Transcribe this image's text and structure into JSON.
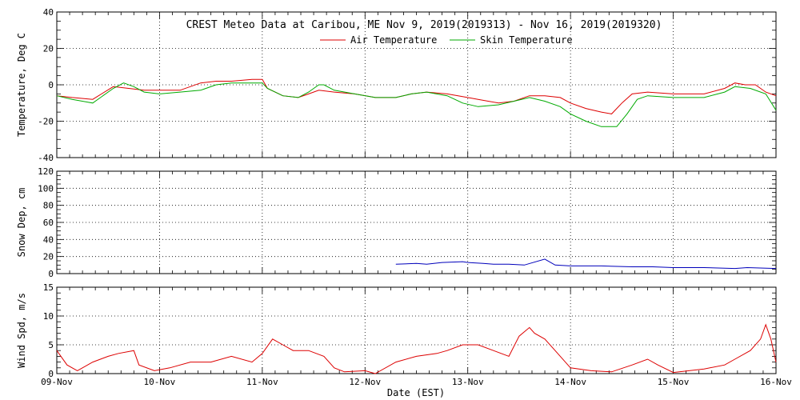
{
  "chart_data": {
    "type": "line",
    "title": "CREST Meteo Data at Caribou, ME   Nov  9, 2019(2019313) - Nov 16, 2019(2019320)",
    "xlabel": "Date (EST)",
    "x_ticks": [
      "09-Nov",
      "10-Nov",
      "11-Nov",
      "12-Nov",
      "13-Nov",
      "14-Nov",
      "15-Nov",
      "16-Nov"
    ],
    "xlim": [
      0,
      7
    ],
    "panels": [
      {
        "name": "temperature",
        "ylabel": "Temperature, Deg C",
        "ylim": [
          -40,
          40
        ],
        "yticks": [
          -40,
          -20,
          0,
          20,
          40
        ],
        "minor_step": 5,
        "legend": "top-center",
        "series": [
          {
            "name": "Air Temperature",
            "color": "#dd0000",
            "x": [
              0,
              0.15,
              0.35,
              0.55,
              0.7,
              0.85,
              1.0,
              1.2,
              1.4,
              1.55,
              1.7,
              1.9,
              2.0,
              2.05,
              2.2,
              2.35,
              2.45,
              2.55,
              2.7,
              2.9,
              3.1,
              3.3,
              3.45,
              3.6,
              3.8,
              4.0,
              4.1,
              4.3,
              4.45,
              4.6,
              4.75,
              4.9,
              5.0,
              5.15,
              5.3,
              5.4,
              5.5,
              5.6,
              5.75,
              6.0,
              6.3,
              6.5,
              6.6,
              6.7,
              6.8,
              6.9,
              7.0
            ],
            "y": [
              -6,
              -7,
              -8,
              -1,
              -2,
              -3,
              -3,
              -3,
              1,
              2,
              2,
              3,
              3,
              -2,
              -6,
              -7,
              -5,
              -3,
              -4,
              -5,
              -7,
              -7,
              -5,
              -4,
              -5,
              -7,
              -8,
              -10,
              -9,
              -6,
              -6,
              -7,
              -10,
              -13,
              -15,
              -16,
              -10,
              -5,
              -4,
              -5,
              -5,
              -2,
              1,
              0,
              0,
              -4,
              -6
            ]
          },
          {
            "name": "Skin Temperature",
            "color": "#00aa00",
            "x": [
              0,
              0.15,
              0.35,
              0.55,
              0.65,
              0.75,
              0.85,
              1.0,
              1.2,
              1.4,
              1.55,
              1.7,
              1.9,
              2.0,
              2.05,
              2.2,
              2.35,
              2.45,
              2.55,
              2.6,
              2.7,
              2.9,
              3.1,
              3.3,
              3.45,
              3.6,
              3.8,
              3.95,
              4.1,
              4.3,
              4.45,
              4.6,
              4.75,
              4.9,
              5.0,
              5.15,
              5.3,
              5.45,
              5.55,
              5.65,
              5.75,
              6.0,
              6.3,
              6.5,
              6.6,
              6.75,
              6.9,
              7.0
            ],
            "y": [
              -6,
              -8,
              -10,
              -2,
              1,
              -1,
              -4,
              -5,
              -4,
              -3,
              0,
              1,
              1,
              1,
              -2,
              -6,
              -7,
              -4,
              0,
              0,
              -3,
              -5,
              -7,
              -7,
              -5,
              -4,
              -6,
              -10,
              -12,
              -11,
              -9,
              -7,
              -9,
              -12,
              -16,
              -20,
              -23,
              -23,
              -16,
              -8,
              -6,
              -7,
              -7,
              -4,
              -1,
              -2,
              -5,
              -14
            ]
          }
        ]
      },
      {
        "name": "snow",
        "ylabel": "Snow Dep, cm",
        "ylim": [
          0,
          120
        ],
        "yticks": [
          0,
          20,
          40,
          60,
          80,
          100,
          120
        ],
        "minor_step": 5,
        "series": [
          {
            "name": "",
            "color": "#0000bb",
            "x": [
              3.3,
              3.5,
              3.6,
              3.75,
              3.95,
              4.0,
              4.15,
              4.25,
              4.3,
              4.4,
              4.55,
              4.75,
              4.85,
              5.0,
              5.3,
              5.6,
              5.8,
              6.0,
              6.3,
              6.6,
              6.72,
              7.0
            ],
            "y": [
              11,
              12,
              11,
              13,
              14,
              13,
              12,
              11,
              11,
              11,
              10,
              17,
              10,
              9,
              9,
              8,
              8,
              7,
              7,
              6,
              7,
              6
            ]
          }
        ]
      },
      {
        "name": "wind",
        "ylabel": "Wind Spd, m/s",
        "ylim": [
          0,
          15
        ],
        "yticks": [
          0,
          5,
          10,
          15
        ],
        "minor_step": 1,
        "series": [
          {
            "name": "",
            "color": "#dd0000",
            "x": [
              0,
              0.1,
              0.2,
              0.35,
              0.5,
              0.6,
              0.75,
              0.8,
              0.95,
              1.1,
              1.3,
              1.5,
              1.7,
              1.9,
              2.0,
              2.1,
              2.2,
              2.3,
              2.45,
              2.6,
              2.7,
              2.8,
              3.0,
              3.1,
              3.3,
              3.5,
              3.7,
              3.8,
              3.95,
              4.1,
              4.25,
              4.4,
              4.5,
              4.6,
              4.65,
              4.75,
              4.85,
              5.0,
              5.2,
              5.4,
              5.6,
              5.75,
              5.85,
              6.0,
              6.3,
              6.5,
              6.6,
              6.75,
              6.85,
              6.9,
              6.95,
              7.0
            ],
            "y": [
              4,
              1.5,
              0.5,
              2,
              3,
              3.5,
              4,
              1.5,
              0.5,
              1,
              2,
              2,
              3,
              2,
              3.5,
              6,
              5,
              4,
              4,
              3,
              1,
              0.3,
              0.5,
              0,
              2,
              3,
              3.5,
              4,
              5,
              5,
              4,
              3,
              6.5,
              8,
              7,
              6,
              4,
              1,
              0.5,
              0.3,
              1.5,
              2.5,
              1.5,
              0.2,
              0.8,
              1.5,
              2.5,
              4,
              6,
              8.5,
              6,
              2
            ]
          }
        ]
      }
    ]
  }
}
